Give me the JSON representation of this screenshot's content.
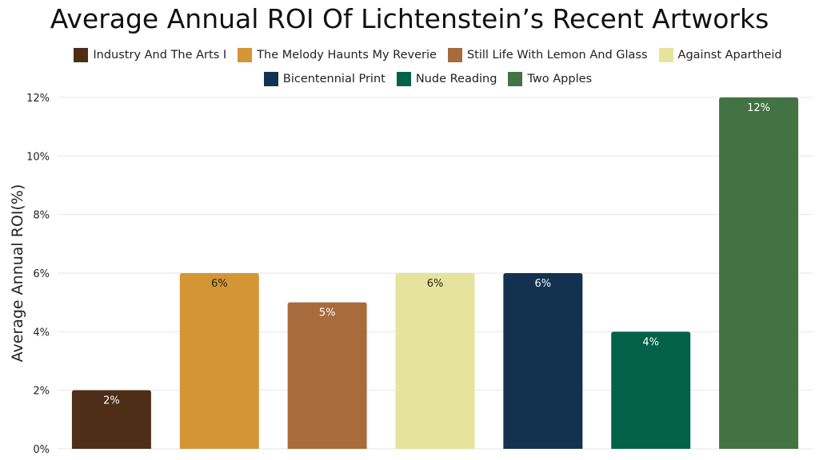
{
  "chart_data": {
    "type": "bar",
    "title": "Average Annual ROI Of Lichtenstein’s Recent Artworks",
    "ylabel": "Average Annual ROI(%)",
    "xlabel": "",
    "ylim": [
      0,
      12
    ],
    "yticks": [
      "0%",
      "2%",
      "4%",
      "6%",
      "8%",
      "10%",
      "12%"
    ],
    "grid": true,
    "legend_position": "top",
    "categories": [
      "Industry And The Arts I",
      "The Melody Haunts My Reverie",
      "Still Life With Lemon And Glass",
      "Against Apartheid",
      "Bicentennial Print",
      "Nude Reading",
      "Two Apples"
    ],
    "values": [
      2,
      6,
      5,
      6,
      6,
      4,
      12
    ],
    "data_labels": [
      "2%",
      "6%",
      "5%",
      "6%",
      "6%",
      "4%",
      "12%"
    ],
    "colors": [
      "#4e2e17",
      "#d49634",
      "#a86b3c",
      "#e6e49c",
      "#12324f",
      "#026249",
      "#437243"
    ],
    "label_colors": [
      "#ffffff",
      "#222222",
      "#ffffff",
      "#222222",
      "#ffffff",
      "#ffffff",
      "#ffffff"
    ]
  }
}
